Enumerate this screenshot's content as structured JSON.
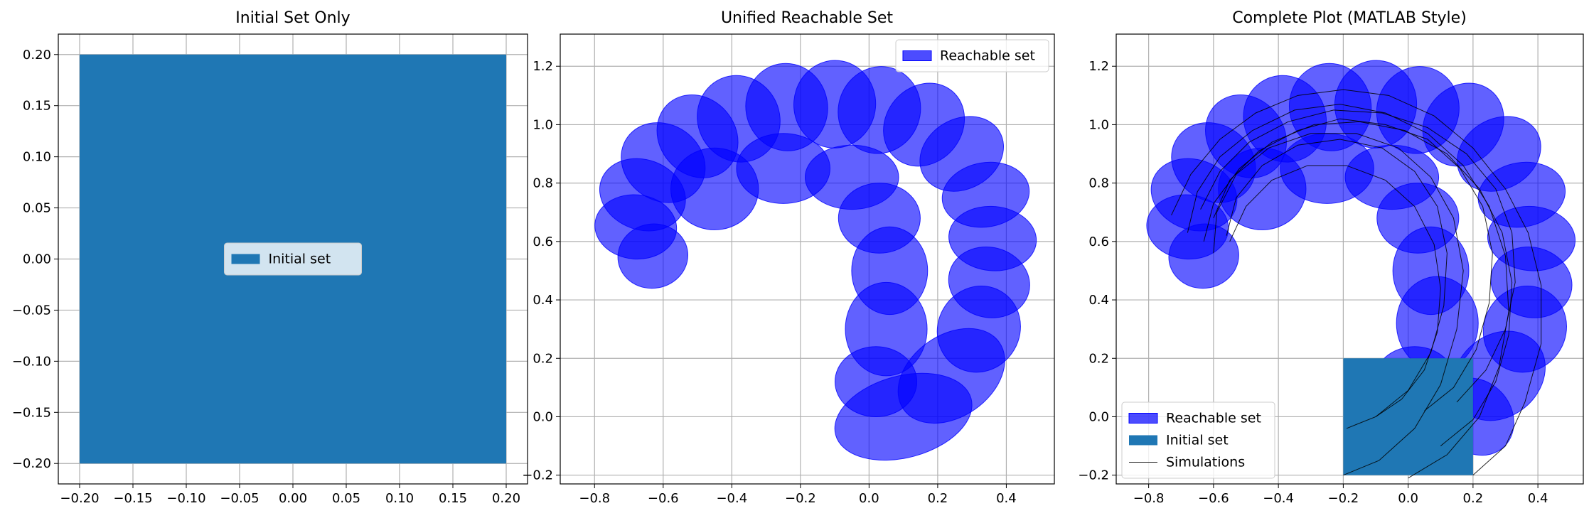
{
  "chart_data": [
    {
      "type": "area",
      "title": "Initial Set Only",
      "xlabel": "",
      "ylabel": "",
      "xlim": [
        -0.22,
        0.22
      ],
      "ylim": [
        -0.22,
        0.22
      ],
      "xticks": [
        -0.2,
        -0.15,
        -0.1,
        -0.05,
        0.0,
        0.05,
        0.1,
        0.15,
        0.2
      ],
      "xtick_labels": [
        "−0.20",
        "−0.15",
        "−0.10",
        "−0.05",
        "0.00",
        "0.05",
        "0.10",
        "0.15",
        "0.20"
      ],
      "yticks": [
        -0.2,
        -0.15,
        -0.1,
        -0.05,
        0.0,
        0.05,
        0.1,
        0.15,
        0.2
      ],
      "ytick_labels": [
        "−0.20",
        "−0.15",
        "−0.10",
        "−0.05",
        "0.00",
        "0.05",
        "0.10",
        "0.15",
        "0.20"
      ],
      "grid": true,
      "legend_position": "center",
      "initial_set": {
        "name": "Initial set",
        "x": [
          -0.2,
          0.2
        ],
        "y": [
          -0.2,
          0.2
        ],
        "color": "#1f77b4"
      },
      "legend": [
        {
          "label": "Initial set",
          "kind": "initial"
        }
      ]
    },
    {
      "type": "area",
      "title": "Unified Reachable Set",
      "xlabel": "",
      "ylabel": "",
      "xlim": [
        -0.9,
        0.54
      ],
      "ylim": [
        -0.23,
        1.31
      ],
      "xticks": [
        -0.8,
        -0.6,
        -0.4,
        -0.2,
        0.0,
        0.2,
        0.4
      ],
      "xtick_labels": [
        "−0.8",
        "−0.6",
        "−0.4",
        "−0.2",
        "0.0",
        "0.2",
        "0.4"
      ],
      "yticks": [
        -0.2,
        0.0,
        0.2,
        0.4,
        0.6,
        0.8,
        1.0,
        1.2
      ],
      "ytick_labels": [
        "−0.2",
        "0.0",
        "0.2",
        "0.4",
        "0.6",
        "0.8",
        "1.0",
        "1.2"
      ],
      "grid": true,
      "legend_position": "top-right",
      "reach_color": "#0000ff",
      "reach_sets": [
        {
          "cx": 0.1,
          "cy": 0.0,
          "rx": 0.24,
          "ry": 0.14,
          "rot": 15
        },
        {
          "cx": 0.24,
          "cy": 0.14,
          "rx": 0.2,
          "ry": 0.14,
          "rot": 35
        },
        {
          "cx": 0.32,
          "cy": 0.3,
          "rx": 0.15,
          "ry": 0.14,
          "rot": 60
        },
        {
          "cx": 0.35,
          "cy": 0.46,
          "rx": 0.12,
          "ry": 0.14,
          "rot": 75
        },
        {
          "cx": 0.36,
          "cy": 0.61,
          "rx": 0.11,
          "ry": 0.15,
          "rot": 85
        },
        {
          "cx": 0.34,
          "cy": 0.76,
          "rx": 0.11,
          "ry": 0.15,
          "rot": 100
        },
        {
          "cx": 0.27,
          "cy": 0.9,
          "rx": 0.12,
          "ry": 0.15,
          "rot": 120
        },
        {
          "cx": 0.16,
          "cy": 1.0,
          "rx": 0.13,
          "ry": 0.15,
          "rot": 140
        },
        {
          "cx": 0.03,
          "cy": 1.05,
          "rx": 0.14,
          "ry": 0.15,
          "rot": 160
        },
        {
          "cx": -0.1,
          "cy": 1.07,
          "rx": 0.14,
          "ry": 0.15,
          "rot": 175
        },
        {
          "cx": -0.24,
          "cy": 1.06,
          "rx": 0.14,
          "ry": 0.15,
          "rot": 190
        },
        {
          "cx": -0.38,
          "cy": 1.02,
          "rx": 0.14,
          "ry": 0.15,
          "rot": 205
        },
        {
          "cx": -0.5,
          "cy": 0.96,
          "rx": 0.13,
          "ry": 0.15,
          "rot": 220
        },
        {
          "cx": -0.6,
          "cy": 0.87,
          "rx": 0.13,
          "ry": 0.15,
          "rot": 235
        },
        {
          "cx": -0.66,
          "cy": 0.76,
          "rx": 0.12,
          "ry": 0.15,
          "rot": 250
        },
        {
          "cx": -0.68,
          "cy": 0.65,
          "rx": 0.11,
          "ry": 0.14,
          "rot": 265
        },
        {
          "cx": -0.63,
          "cy": 0.55,
          "rx": 0.11,
          "ry": 0.12,
          "rot": 280
        },
        {
          "cx": 0.05,
          "cy": 0.3,
          "rx": 0.14,
          "ry": 0.16,
          "rot": 0
        },
        {
          "cx": 0.06,
          "cy": 0.5,
          "rx": 0.13,
          "ry": 0.15,
          "rot": 0
        },
        {
          "cx": 0.03,
          "cy": 0.68,
          "rx": 0.14,
          "ry": 0.12,
          "rot": 0
        },
        {
          "cx": -0.05,
          "cy": 0.82,
          "rx": 0.16,
          "ry": 0.11,
          "rot": 0
        },
        {
          "cx": -0.25,
          "cy": 0.85,
          "rx": 0.16,
          "ry": 0.12,
          "rot": 0
        },
        {
          "cx": -0.45,
          "cy": 0.78,
          "rx": 0.15,
          "ry": 0.14,
          "rot": 0
        },
        {
          "cx": 0.02,
          "cy": 0.12,
          "rx": 0.14,
          "ry": 0.12,
          "rot": 0
        }
      ],
      "legend": [
        {
          "label": "Reachable set",
          "kind": "reach"
        }
      ]
    },
    {
      "type": "area",
      "title": "Complete Plot (MATLAB Style)",
      "xlabel": "",
      "ylabel": "",
      "xlim": [
        -0.9,
        0.54
      ],
      "ylim": [
        -0.23,
        1.31
      ],
      "xticks": [
        -0.8,
        -0.6,
        -0.4,
        -0.2,
        0.0,
        0.2,
        0.4
      ],
      "xtick_labels": [
        "−0.8",
        "−0.6",
        "−0.4",
        "−0.2",
        "0.0",
        "0.2",
        "0.4"
      ],
      "yticks": [
        -0.2,
        0.0,
        0.2,
        0.4,
        0.6,
        0.8,
        1.0,
        1.2
      ],
      "ytick_labels": [
        "−0.2",
        "0.0",
        "0.2",
        "0.4",
        "0.6",
        "0.8",
        "1.0",
        "1.2"
      ],
      "grid": true,
      "legend_position": "bottom-left",
      "reach_color": "#0000ff",
      "initial_set": {
        "name": "Initial set",
        "x": [
          -0.2,
          0.2
        ],
        "y": [
          -0.2,
          0.2
        ],
        "color": "#1f77b4"
      },
      "simulations": [
        [
          [
            0.2,
            -0.2
          ],
          [
            0.3,
            -0.1
          ],
          [
            0.36,
            0.05
          ],
          [
            0.41,
            0.25
          ],
          [
            0.41,
            0.45
          ],
          [
            0.37,
            0.63
          ],
          [
            0.3,
            0.78
          ],
          [
            0.2,
            0.92
          ],
          [
            0.08,
            1.03
          ],
          [
            -0.06,
            1.1
          ],
          [
            -0.2,
            1.12
          ],
          [
            -0.34,
            1.1
          ],
          [
            -0.47,
            1.04
          ],
          [
            -0.58,
            0.95
          ],
          [
            -0.67,
            0.83
          ],
          [
            -0.73,
            0.69
          ]
        ],
        [
          [
            0.0,
            -0.21
          ],
          [
            0.12,
            -0.13
          ],
          [
            0.22,
            0.0
          ],
          [
            0.28,
            0.17
          ],
          [
            0.31,
            0.36
          ],
          [
            0.3,
            0.55
          ],
          [
            0.25,
            0.72
          ],
          [
            0.17,
            0.86
          ],
          [
            0.06,
            0.97
          ],
          [
            -0.07,
            1.04
          ],
          [
            -0.21,
            1.07
          ],
          [
            -0.35,
            1.05
          ],
          [
            -0.48,
            0.98
          ],
          [
            -0.58,
            0.89
          ],
          [
            -0.65,
            0.77
          ],
          [
            -0.68,
            0.63
          ]
        ],
        [
          [
            -0.2,
            -0.2
          ],
          [
            -0.09,
            -0.15
          ],
          [
            0.02,
            -0.04
          ],
          [
            0.1,
            0.11
          ],
          [
            0.15,
            0.3
          ],
          [
            0.17,
            0.5
          ],
          [
            0.14,
            0.68
          ],
          [
            0.07,
            0.82
          ],
          [
            -0.03,
            0.92
          ],
          [
            -0.16,
            0.97
          ],
          [
            -0.3,
            0.97
          ],
          [
            -0.43,
            0.92
          ],
          [
            -0.53,
            0.83
          ],
          [
            -0.59,
            0.7
          ],
          [
            -0.6,
            0.56
          ]
        ],
        [
          [
            -0.19,
            -0.04
          ],
          [
            -0.1,
            0.0
          ],
          [
            0.0,
            0.09
          ],
          [
            0.07,
            0.22
          ],
          [
            0.11,
            0.38
          ],
          [
            0.12,
            0.56
          ],
          [
            0.09,
            0.72
          ],
          [
            0.02,
            0.84
          ],
          [
            -0.08,
            0.92
          ],
          [
            -0.21,
            0.95
          ],
          [
            -0.34,
            0.93
          ],
          [
            -0.45,
            0.86
          ],
          [
            -0.53,
            0.75
          ],
          [
            -0.56,
            0.62
          ]
        ],
        [
          [
            0.05,
            0.02
          ],
          [
            0.14,
            0.1
          ],
          [
            0.21,
            0.23
          ],
          [
            0.25,
            0.39
          ],
          [
            0.26,
            0.56
          ],
          [
            0.23,
            0.72
          ],
          [
            0.16,
            0.85
          ],
          [
            0.06,
            0.95
          ],
          [
            -0.07,
            1.0
          ],
          [
            -0.21,
            1.02
          ],
          [
            -0.34,
            0.98
          ],
          [
            -0.46,
            0.91
          ],
          [
            -0.55,
            0.81
          ],
          [
            -0.6,
            0.68
          ]
        ],
        [
          [
            0.1,
            -0.1
          ],
          [
            0.2,
            -0.01
          ],
          [
            0.27,
            0.12
          ],
          [
            0.31,
            0.28
          ],
          [
            0.32,
            0.46
          ],
          [
            0.29,
            0.63
          ],
          [
            0.22,
            0.78
          ],
          [
            0.12,
            0.9
          ],
          [
            -0.01,
            0.98
          ],
          [
            -0.15,
            1.01
          ],
          [
            -0.29,
            1.0
          ],
          [
            -0.42,
            0.94
          ],
          [
            -0.52,
            0.85
          ],
          [
            -0.6,
            0.73
          ],
          [
            -0.63,
            0.6
          ]
        ],
        [
          [
            -0.1,
            0.0
          ],
          [
            -0.02,
            0.06
          ],
          [
            0.05,
            0.16
          ],
          [
            0.09,
            0.29
          ],
          [
            0.1,
            0.44
          ],
          [
            0.08,
            0.59
          ],
          [
            0.02,
            0.72
          ],
          [
            -0.07,
            0.81
          ],
          [
            -0.19,
            0.86
          ],
          [
            -0.31,
            0.86
          ],
          [
            -0.42,
            0.81
          ],
          [
            -0.5,
            0.72
          ],
          [
            -0.55,
            0.6
          ]
        ],
        [
          [
            0.15,
            0.05
          ],
          [
            0.24,
            0.16
          ],
          [
            0.3,
            0.3
          ],
          [
            0.33,
            0.46
          ],
          [
            0.32,
            0.63
          ],
          [
            0.27,
            0.78
          ],
          [
            0.18,
            0.9
          ],
          [
            0.06,
            0.99
          ],
          [
            -0.08,
            1.04
          ],
          [
            -0.23,
            1.05
          ],
          [
            -0.37,
            1.01
          ],
          [
            -0.49,
            0.94
          ],
          [
            -0.58,
            0.84
          ],
          [
            -0.64,
            0.71
          ]
        ]
      ],
      "reach_sets": [
        {
          "cx": 0.21,
          "cy": 0.0,
          "rx": 0.12,
          "ry": 0.14,
          "rot": 40
        },
        {
          "cx": 0.28,
          "cy": 0.14,
          "rx": 0.17,
          "ry": 0.14,
          "rot": 40
        },
        {
          "cx": 0.36,
          "cy": 0.3,
          "rx": 0.15,
          "ry": 0.14,
          "rot": 60
        },
        {
          "cx": 0.38,
          "cy": 0.46,
          "rx": 0.12,
          "ry": 0.14,
          "rot": 75
        },
        {
          "cx": 0.38,
          "cy": 0.61,
          "rx": 0.11,
          "ry": 0.15,
          "rot": 85
        },
        {
          "cx": 0.35,
          "cy": 0.76,
          "rx": 0.11,
          "ry": 0.15,
          "rot": 100
        },
        {
          "cx": 0.28,
          "cy": 0.9,
          "rx": 0.12,
          "ry": 0.15,
          "rot": 120
        },
        {
          "cx": 0.17,
          "cy": 1.0,
          "rx": 0.13,
          "ry": 0.15,
          "rot": 140
        },
        {
          "cx": 0.03,
          "cy": 1.05,
          "rx": 0.14,
          "ry": 0.15,
          "rot": 160
        },
        {
          "cx": -0.1,
          "cy": 1.07,
          "rx": 0.14,
          "ry": 0.15,
          "rot": 175
        },
        {
          "cx": -0.24,
          "cy": 1.06,
          "rx": 0.14,
          "ry": 0.15,
          "rot": 190
        },
        {
          "cx": -0.38,
          "cy": 1.02,
          "rx": 0.14,
          "ry": 0.15,
          "rot": 205
        },
        {
          "cx": -0.5,
          "cy": 0.96,
          "rx": 0.13,
          "ry": 0.15,
          "rot": 220
        },
        {
          "cx": -0.6,
          "cy": 0.87,
          "rx": 0.13,
          "ry": 0.15,
          "rot": 235
        },
        {
          "cx": -0.66,
          "cy": 0.76,
          "rx": 0.12,
          "ry": 0.15,
          "rot": 250
        },
        {
          "cx": -0.68,
          "cy": 0.65,
          "rx": 0.11,
          "ry": 0.14,
          "rot": 265
        },
        {
          "cx": -0.63,
          "cy": 0.55,
          "rx": 0.11,
          "ry": 0.12,
          "rot": 280
        },
        {
          "cx": 0.09,
          "cy": 0.32,
          "rx": 0.14,
          "ry": 0.16,
          "rot": 0
        },
        {
          "cx": 0.07,
          "cy": 0.5,
          "rx": 0.13,
          "ry": 0.15,
          "rot": 0
        },
        {
          "cx": 0.03,
          "cy": 0.68,
          "rx": 0.14,
          "ry": 0.12,
          "rot": 0
        },
        {
          "cx": -0.05,
          "cy": 0.82,
          "rx": 0.16,
          "ry": 0.11,
          "rot": 0
        },
        {
          "cx": -0.25,
          "cy": 0.85,
          "rx": 0.16,
          "ry": 0.12,
          "rot": 0
        },
        {
          "cx": -0.45,
          "cy": 0.78,
          "rx": 0.15,
          "ry": 0.14,
          "rot": 0
        },
        {
          "cx": 0.02,
          "cy": 0.12,
          "rx": 0.14,
          "ry": 0.12,
          "rot": 0
        }
      ],
      "legend": [
        {
          "label": "Reachable set",
          "kind": "reach"
        },
        {
          "label": "Initial set",
          "kind": "initial"
        },
        {
          "label": "Simulations",
          "kind": "line"
        }
      ]
    }
  ]
}
